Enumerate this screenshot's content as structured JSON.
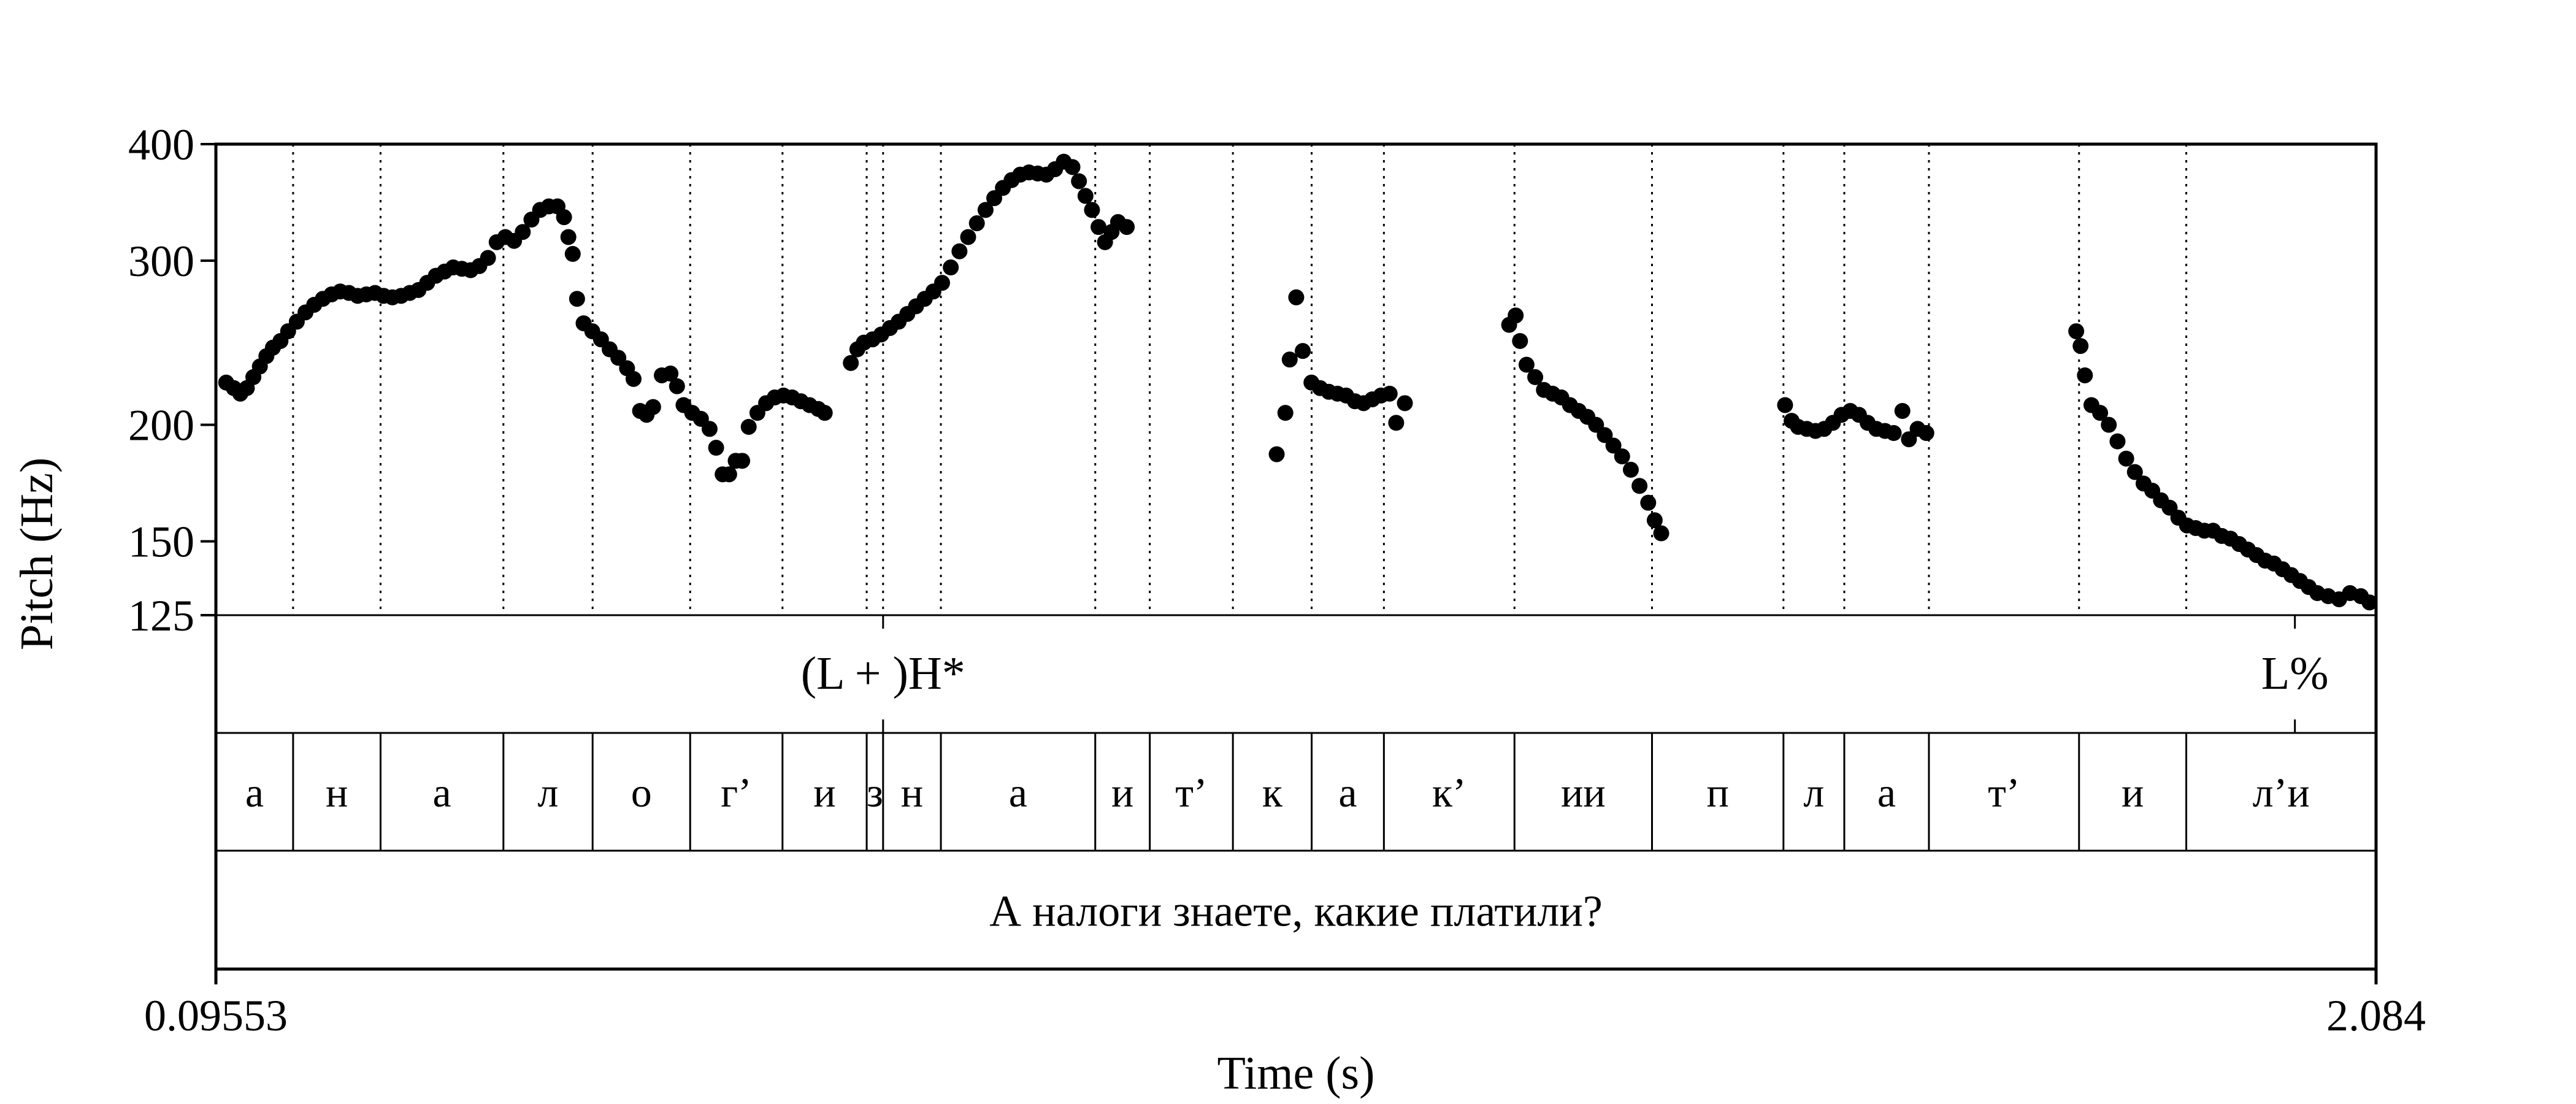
{
  "chart_data": {
    "type": "scatter",
    "ylabel": "Pitch (Hz)",
    "xlabel": "Time (s)",
    "x_start_label": "0.09553",
    "x_end_label": "2.084",
    "xlim": [
      0.09553,
      2.084
    ],
    "ylim": [
      125,
      400
    ],
    "yscale": "log",
    "yticks": [
      125,
      150,
      200,
      300,
      400
    ],
    "tones": [
      {
        "time": 0.7097,
        "label": "(L + )H*"
      },
      {
        "time": 2.0093,
        "label": "L%"
      }
    ],
    "phones": [
      {
        "label": "а",
        "start": 0.09553,
        "end": 0.1666
      },
      {
        "label": "н",
        "start": 0.1666,
        "end": 0.2471
      },
      {
        "label": "а",
        "start": 0.2471,
        "end": 0.3602
      },
      {
        "label": "л",
        "start": 0.3602,
        "end": 0.4423
      },
      {
        "label": "о",
        "start": 0.4423,
        "end": 0.5321
      },
      {
        "label": "г’",
        "start": 0.5321,
        "end": 0.6171
      },
      {
        "label": "и",
        "start": 0.6171,
        "end": 0.6946
      },
      {
        "label": "з",
        "start": 0.6946,
        "end": 0.7097
      },
      {
        "label": "н",
        "start": 0.7097,
        "end": 0.7629
      },
      {
        "label": "а",
        "start": 0.7629,
        "end": 0.905
      },
      {
        "label": "и",
        "start": 0.905,
        "end": 0.9552
      },
      {
        "label": "т’",
        "start": 0.9552,
        "end": 1.0317
      },
      {
        "label": "к",
        "start": 1.0317,
        "end": 1.1042
      },
      {
        "label": "а",
        "start": 1.1042,
        "end": 1.1707
      },
      {
        "label": "к’",
        "start": 1.1707,
        "end": 1.2909
      },
      {
        "label": "ии",
        "start": 1.2909,
        "end": 1.4175
      },
      {
        "label": "п",
        "start": 1.4175,
        "end": 1.5385
      },
      {
        "label": "л",
        "start": 1.5385,
        "end": 1.5945
      },
      {
        "label": "а",
        "start": 1.5945,
        "end": 1.6724
      },
      {
        "label": "т’",
        "start": 1.6724,
        "end": 1.8106
      },
      {
        "label": "и",
        "start": 1.8106,
        "end": 1.9093
      },
      {
        "label": "л’и",
        "start": 1.9093,
        "end": 2.084
      }
    ],
    "sentence": "А налоги знаете, какие платили?",
    "series": [
      {
        "points": [
          [
            0.105,
            222
          ],
          [
            0.112,
            219
          ],
          [
            0.118,
            216
          ],
          [
            0.124,
            219
          ],
          [
            0.13,
            225
          ],
          [
            0.136,
            231
          ],
          [
            0.142,
            237
          ],
          [
            0.148,
            242
          ],
          [
            0.155,
            246
          ],
          [
            0.162,
            252
          ],
          [
            0.17,
            258
          ],
          [
            0.178,
            264
          ],
          [
            0.186,
            269
          ],
          [
            0.194,
            273
          ],
          [
            0.202,
            276
          ],
          [
            0.21,
            278
          ],
          [
            0.218,
            277
          ],
          [
            0.226,
            275
          ],
          [
            0.234,
            276
          ],
          [
            0.242,
            277
          ],
          [
            0.25,
            275
          ],
          [
            0.258,
            274
          ],
          [
            0.266,
            275
          ],
          [
            0.274,
            277
          ],
          [
            0.282,
            279
          ],
          [
            0.29,
            284
          ],
          [
            0.298,
            289
          ],
          [
            0.306,
            292
          ],
          [
            0.314,
            295
          ],
          [
            0.322,
            294
          ],
          [
            0.33,
            293
          ],
          [
            0.338,
            296
          ],
          [
            0.346,
            302
          ],
          [
            0.354,
            314
          ],
          [
            0.362,
            318
          ],
          [
            0.37,
            315
          ],
          [
            0.378,
            322
          ],
          [
            0.386,
            332
          ],
          [
            0.394,
            340
          ],
          [
            0.402,
            343
          ],
          [
            0.41,
            343
          ],
          [
            0.416,
            334
          ],
          [
            0.42,
            318
          ],
          [
            0.424,
            305
          ],
          [
            0.428,
            273
          ],
          [
            0.434,
            257
          ],
          [
            0.442,
            252
          ],
          [
            0.45,
            247
          ],
          [
            0.458,
            241
          ],
          [
            0.466,
            236
          ],
          [
            0.474,
            230
          ],
          [
            0.48,
            224
          ],
          [
            0.486,
            207
          ],
          [
            0.492,
            205
          ],
          [
            0.498,
            209
          ],
          [
            0.506,
            226
          ],
          [
            0.514,
            227
          ],
          [
            0.52,
            220
          ],
          [
            0.526,
            210
          ],
          [
            0.534,
            206
          ],
          [
            0.542,
            203
          ],
          [
            0.55,
            198
          ],
          [
            0.556,
            189
          ],
          [
            0.562,
            177
          ],
          [
            0.568,
            177
          ],
          [
            0.574,
            183
          ],
          [
            0.58,
            183
          ],
          [
            0.586,
            199
          ],
          [
            0.594,
            206
          ],
          [
            0.602,
            211
          ],
          [
            0.61,
            214
          ],
          [
            0.618,
            215
          ],
          [
            0.626,
            214
          ],
          [
            0.634,
            212
          ],
          [
            0.642,
            210
          ],
          [
            0.65,
            208
          ],
          [
            0.656,
            206
          ],
          [
            0.68,
            233
          ],
          [
            0.686,
            241
          ],
          [
            0.692,
            245
          ],
          [
            0.7,
            247
          ],
          [
            0.708,
            250
          ],
          [
            0.716,
            254
          ],
          [
            0.724,
            258
          ],
          [
            0.732,
            263
          ],
          [
            0.74,
            268
          ],
          [
            0.748,
            273
          ],
          [
            0.756,
            278
          ],
          [
            0.764,
            284
          ],
          [
            0.772,
            295
          ],
          [
            0.78,
            307
          ],
          [
            0.788,
            318
          ],
          [
            0.796,
            329
          ],
          [
            0.804,
            340
          ],
          [
            0.812,
            350
          ],
          [
            0.82,
            359
          ],
          [
            0.828,
            366
          ],
          [
            0.836,
            371
          ],
          [
            0.844,
            373
          ],
          [
            0.852,
            372
          ],
          [
            0.86,
            371
          ],
          [
            0.868,
            376
          ],
          [
            0.876,
            383
          ],
          [
            0.884,
            378
          ],
          [
            0.89,
            365
          ],
          [
            0.896,
            352
          ],
          [
            0.902,
            340
          ],
          [
            0.908,
            326
          ],
          [
            0.914,
            314
          ],
          [
            0.92,
            322
          ],
          [
            0.926,
            330
          ],
          [
            0.934,
            326
          ],
          [
            1.072,
            186
          ],
          [
            1.08,
            206
          ],
          [
            1.084,
            235
          ],
          [
            1.09,
            274
          ],
          [
            1.096,
            240
          ],
          [
            1.104,
            222
          ],
          [
            1.112,
            219
          ],
          [
            1.12,
            217
          ],
          [
            1.128,
            216
          ],
          [
            1.136,
            215
          ],
          [
            1.144,
            212
          ],
          [
            1.152,
            211
          ],
          [
            1.16,
            213
          ],
          [
            1.168,
            215
          ],
          [
            1.176,
            216
          ],
          [
            1.182,
            201
          ],
          [
            1.19,
            211
          ],
          [
            1.286,
            256
          ],
          [
            1.292,
            262
          ],
          [
            1.296,
            246
          ],
          [
            1.302,
            232
          ],
          [
            1.31,
            225
          ],
          [
            1.318,
            218
          ],
          [
            1.326,
            216
          ],
          [
            1.334,
            214
          ],
          [
            1.342,
            210
          ],
          [
            1.35,
            207
          ],
          [
            1.358,
            204
          ],
          [
            1.366,
            200
          ],
          [
            1.374,
            195
          ],
          [
            1.382,
            190
          ],
          [
            1.39,
            185
          ],
          [
            1.398,
            179
          ],
          [
            1.406,
            172
          ],
          [
            1.414,
            165
          ],
          [
            1.42,
            158
          ],
          [
            1.426,
            153
          ],
          [
            1.54,
            210
          ],
          [
            1.546,
            202
          ],
          [
            1.552,
            199
          ],
          [
            1.56,
            198
          ],
          [
            1.568,
            197
          ],
          [
            1.576,
            198
          ],
          [
            1.584,
            201
          ],
          [
            1.592,
            205
          ],
          [
            1.6,
            207
          ],
          [
            1.608,
            205
          ],
          [
            1.616,
            201
          ],
          [
            1.624,
            198
          ],
          [
            1.632,
            197
          ],
          [
            1.64,
            196
          ],
          [
            1.648,
            207
          ],
          [
            1.654,
            193
          ],
          [
            1.662,
            198
          ],
          [
            1.67,
            196
          ],
          [
            1.808,
            252
          ],
          [
            1.812,
            243
          ],
          [
            1.816,
            226
          ],
          [
            1.822,
            210
          ],
          [
            1.83,
            206
          ],
          [
            1.838,
            200
          ],
          [
            1.846,
            192
          ],
          [
            1.854,
            184
          ],
          [
            1.862,
            178
          ],
          [
            1.87,
            173
          ],
          [
            1.878,
            170
          ],
          [
            1.886,
            166
          ],
          [
            1.894,
            163
          ],
          [
            1.902,
            159
          ],
          [
            1.91,
            156
          ],
          [
            1.918,
            155
          ],
          [
            1.926,
            154
          ],
          [
            1.934,
            154
          ],
          [
            1.942,
            152
          ],
          [
            1.95,
            151
          ],
          [
            1.958,
            149
          ],
          [
            1.966,
            147
          ],
          [
            1.974,
            145
          ],
          [
            1.982,
            143
          ],
          [
            1.99,
            142
          ],
          [
            1.998,
            140
          ],
          [
            2.006,
            138
          ],
          [
            2.014,
            136
          ],
          [
            2.022,
            134
          ],
          [
            2.03,
            132
          ],
          [
            2.04,
            131
          ],
          [
            2.05,
            130
          ],
          [
            2.06,
            132
          ],
          [
            2.07,
            131
          ],
          [
            2.078,
            129
          ]
        ]
      }
    ]
  }
}
